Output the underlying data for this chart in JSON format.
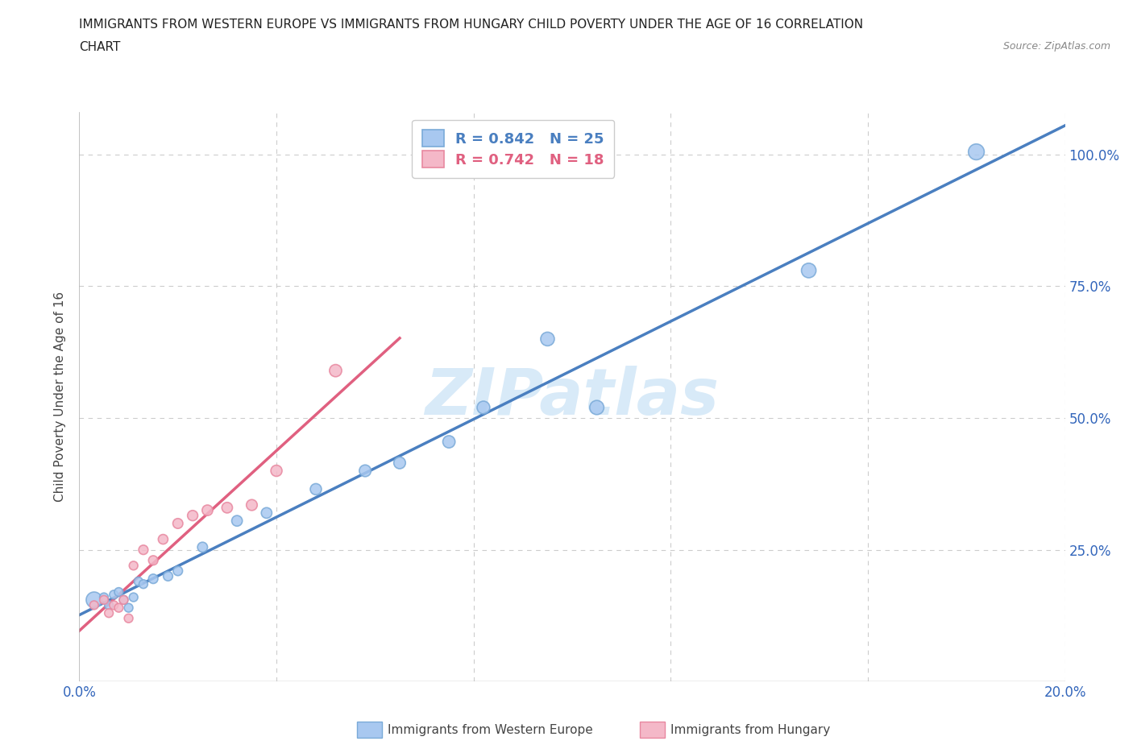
{
  "title_line1": "IMMIGRANTS FROM WESTERN EUROPE VS IMMIGRANTS FROM HUNGARY CHILD POVERTY UNDER THE AGE OF 16 CORRELATION",
  "title_line2": "CHART",
  "source": "Source: ZipAtlas.com",
  "ylabel": "Child Poverty Under the Age of 16",
  "xlim": [
    0.0,
    0.2
  ],
  "ylim": [
    0.0,
    1.08
  ],
  "x_ticks": [
    0.0,
    0.04,
    0.08,
    0.12,
    0.16,
    0.2
  ],
  "y_ticks": [
    0.0,
    0.25,
    0.5,
    0.75,
    1.0
  ],
  "blue_R": 0.842,
  "blue_N": 25,
  "pink_R": 0.742,
  "pink_N": 18,
  "blue_color": "#A8C8F0",
  "pink_color": "#F4B8C8",
  "blue_edge_color": "#7AAAD8",
  "pink_edge_color": "#E888A0",
  "blue_line_color": "#4A7FC0",
  "pink_line_color": "#E06080",
  "watermark_color": "#D8EAF8",
  "blue_scatter_x": [
    0.003,
    0.005,
    0.006,
    0.007,
    0.008,
    0.009,
    0.01,
    0.011,
    0.012,
    0.013,
    0.015,
    0.018,
    0.02,
    0.025,
    0.032,
    0.038,
    0.048,
    0.058,
    0.065,
    0.075,
    0.082,
    0.095,
    0.105,
    0.148,
    0.182
  ],
  "blue_scatter_y": [
    0.155,
    0.16,
    0.145,
    0.165,
    0.17,
    0.155,
    0.14,
    0.16,
    0.19,
    0.185,
    0.195,
    0.2,
    0.21,
    0.255,
    0.305,
    0.32,
    0.365,
    0.4,
    0.415,
    0.455,
    0.52,
    0.65,
    0.52,
    0.78,
    1.005
  ],
  "blue_scatter_sizes": [
    200,
    60,
    60,
    60,
    60,
    60,
    60,
    60,
    60,
    60,
    70,
    70,
    70,
    80,
    90,
    90,
    100,
    110,
    110,
    120,
    130,
    150,
    160,
    170,
    200
  ],
  "pink_scatter_x": [
    0.003,
    0.005,
    0.006,
    0.007,
    0.008,
    0.009,
    0.01,
    0.011,
    0.013,
    0.015,
    0.017,
    0.02,
    0.023,
    0.026,
    0.03,
    0.035,
    0.04,
    0.052
  ],
  "pink_scatter_y": [
    0.145,
    0.155,
    0.13,
    0.145,
    0.14,
    0.155,
    0.12,
    0.22,
    0.25,
    0.23,
    0.27,
    0.3,
    0.315,
    0.325,
    0.33,
    0.335,
    0.4,
    0.59
  ],
  "pink_scatter_sizes": [
    60,
    60,
    60,
    60,
    60,
    60,
    60,
    60,
    70,
    70,
    75,
    80,
    85,
    90,
    90,
    95,
    100,
    120
  ],
  "legend_blue_label": "R = 0.842   N = 25",
  "legend_pink_label": "R = 0.742   N = 18",
  "bottom_legend_blue": "Immigrants from Western Europe",
  "bottom_legend_pink": "Immigrants from Hungary"
}
